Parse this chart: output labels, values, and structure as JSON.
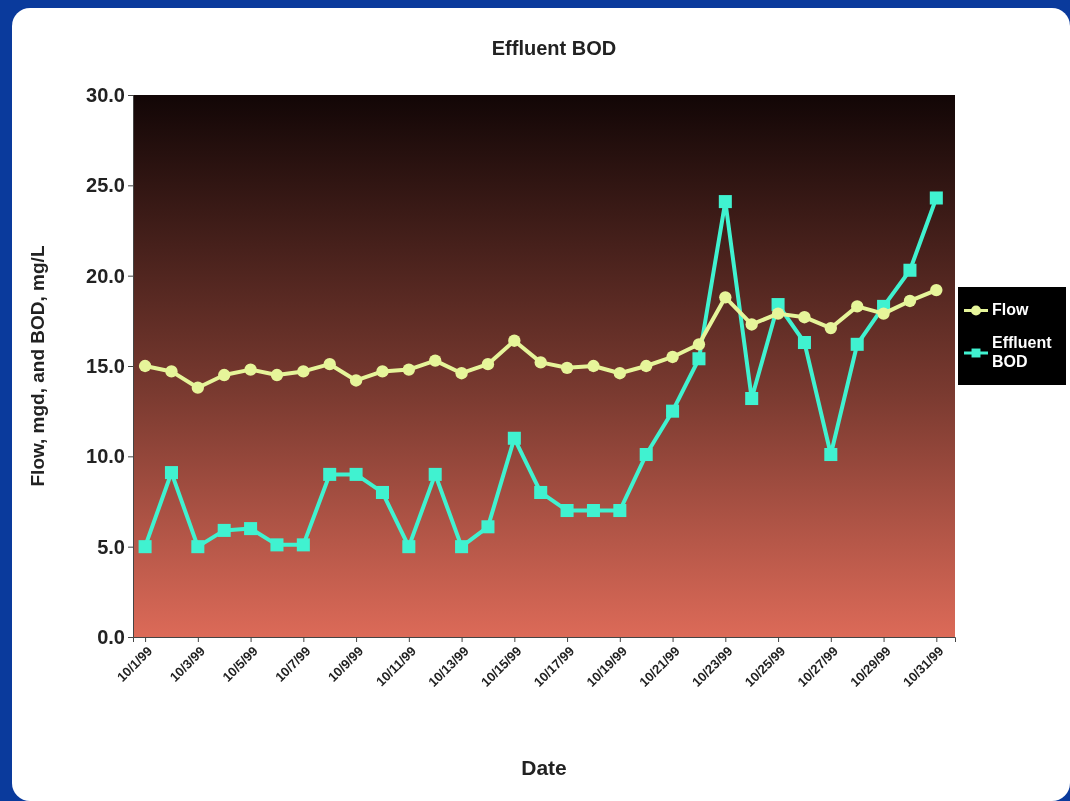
{
  "chart_data": {
    "type": "line",
    "title": "Effluent BOD",
    "xlabel": "Date",
    "ylabel": "Flow, mgd, and BOD, mg/L",
    "x": [
      "1999-10-01",
      "1999-10-02",
      "1999-10-03",
      "1999-10-04",
      "1999-10-05",
      "1999-10-06",
      "1999-10-07",
      "1999-10-08",
      "1999-10-09",
      "1999-10-10",
      "1999-10-11",
      "1999-10-12",
      "1999-10-13",
      "1999-10-14",
      "1999-10-15",
      "1999-10-16",
      "1999-10-17",
      "1999-10-18",
      "1999-10-19",
      "1999-10-20",
      "1999-10-21",
      "1999-10-22",
      "1999-10-23",
      "1999-10-24",
      "1999-10-25",
      "1999-10-26",
      "1999-10-27",
      "1999-10-28",
      "1999-10-29",
      "1999-10-30",
      "1999-10-31"
    ],
    "series": [
      {
        "name": "Flow",
        "color": "#e6f59a",
        "marker": "circle",
        "values": [
          15.0,
          14.7,
          13.8,
          14.5,
          14.8,
          14.5,
          14.7,
          15.1,
          14.2,
          14.7,
          14.8,
          15.3,
          14.6,
          15.1,
          16.4,
          15.2,
          14.9,
          15.0,
          14.6,
          15.0,
          15.5,
          16.2,
          18.8,
          17.3,
          17.9,
          17.7,
          17.1,
          18.3,
          17.9,
          18.6,
          19.2
        ]
      },
      {
        "name": "Effluent BOD",
        "color": "#40f2d0",
        "marker": "square",
        "values": [
          5.0,
          9.1,
          5.0,
          5.9,
          6.0,
          5.1,
          5.1,
          9.0,
          9.0,
          8.0,
          5.0,
          9.0,
          5.0,
          6.1,
          11.0,
          8.0,
          7.0,
          7.0,
          7.0,
          10.1,
          12.5,
          15.4,
          24.1,
          13.2,
          18.4,
          16.3,
          10.1,
          16.2,
          18.3,
          20.3,
          24.3
        ]
      }
    ],
    "xlim": [
      "1999-09-30T13:00",
      "1999-10-31T17:00"
    ],
    "xticks": [
      {
        "value": "1999-10-01",
        "label": "10/1/99"
      },
      {
        "value": "1999-10-03",
        "label": "10/3/99"
      },
      {
        "value": "1999-10-05",
        "label": "10/5/99"
      },
      {
        "value": "1999-10-07",
        "label": "10/7/99"
      },
      {
        "value": "1999-10-09",
        "label": "10/9/99"
      },
      {
        "value": "1999-10-11",
        "label": "10/11/99"
      },
      {
        "value": "1999-10-13",
        "label": "10/13/99"
      },
      {
        "value": "1999-10-15",
        "label": "10/15/99"
      },
      {
        "value": "1999-10-17",
        "label": "10/17/99"
      },
      {
        "value": "1999-10-19",
        "label": "10/19/99"
      },
      {
        "value": "1999-10-21",
        "label": "10/21/99"
      },
      {
        "value": "1999-10-23",
        "label": "10/23/99"
      },
      {
        "value": "1999-10-25",
        "label": "10/25/99"
      },
      {
        "value": "1999-10-27",
        "label": "10/27/99"
      },
      {
        "value": "1999-10-29",
        "label": "10/29/99"
      },
      {
        "value": "1999-10-31",
        "label": "10/31/99"
      }
    ],
    "ylim": [
      0,
      30
    ],
    "yticks": [
      {
        "value": 0,
        "label": "0.0"
      },
      {
        "value": 5,
        "label": "5.0"
      },
      {
        "value": 10,
        "label": "10.0"
      },
      {
        "value": 15,
        "label": "15.0"
      },
      {
        "value": 20,
        "label": "20.0"
      },
      {
        "value": 25,
        "label": "25.0"
      },
      {
        "value": 30,
        "label": "30.0"
      }
    ],
    "grid": false,
    "legend": "right",
    "line_style": "solid"
  }
}
